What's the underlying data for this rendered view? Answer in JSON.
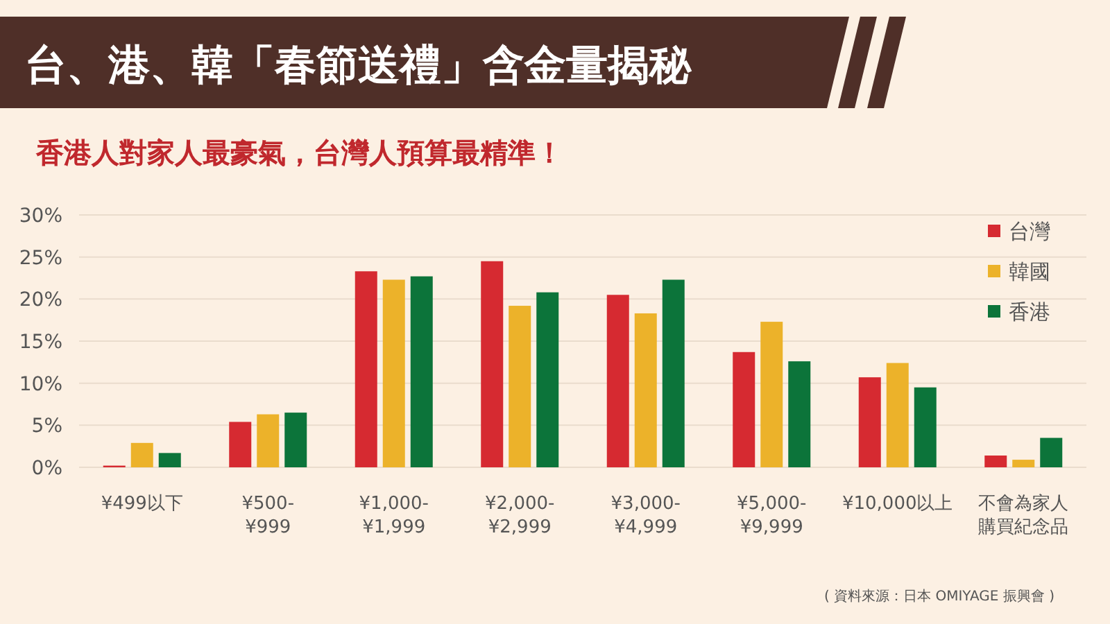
{
  "chart_data": {
    "type": "bar",
    "title": "台、港、韓「春節送禮」含金量揭秘",
    "subtitle": "香港人對家人最豪氣，台灣人預算最精準！",
    "categories": [
      "¥499以下",
      "¥500-\n¥999",
      "¥1,000-\n¥1,999",
      "¥2,000-\n¥2,999",
      "¥3,000-\n¥4,999",
      "¥5,000-\n¥9,999",
      "¥10,000以上",
      "不會為家人購買紀念品"
    ],
    "series": [
      {
        "name": "台灣",
        "color": "#d62a31",
        "values": [
          0.2,
          5.4,
          23.3,
          24.5,
          20.5,
          13.7,
          10.7,
          1.4
        ]
      },
      {
        "name": "韓國",
        "color": "#ecb22a",
        "values": [
          2.9,
          6.3,
          22.3,
          19.2,
          18.3,
          17.3,
          12.4,
          0.9
        ]
      },
      {
        "name": "香港",
        "color": "#0c743a",
        "values": [
          1.7,
          6.5,
          22.7,
          20.8,
          22.3,
          12.6,
          9.5,
          3.5
        ]
      }
    ],
    "ylim": [
      0,
      30
    ],
    "yticks": [
      {
        "value": 0,
        "label": "0%"
      },
      {
        "value": 5,
        "label": "5%"
      },
      {
        "value": 10,
        "label": "10%"
      },
      {
        "value": 15,
        "label": "15%"
      },
      {
        "value": 20,
        "label": "20%"
      },
      {
        "value": 25,
        "label": "25%"
      },
      {
        "value": 30,
        "label": "30%"
      }
    ],
    "grid": "y",
    "legend": "top right",
    "annotations": [
      "( 資料來源：日本 OMIYAGE 振興會 )"
    ]
  }
}
